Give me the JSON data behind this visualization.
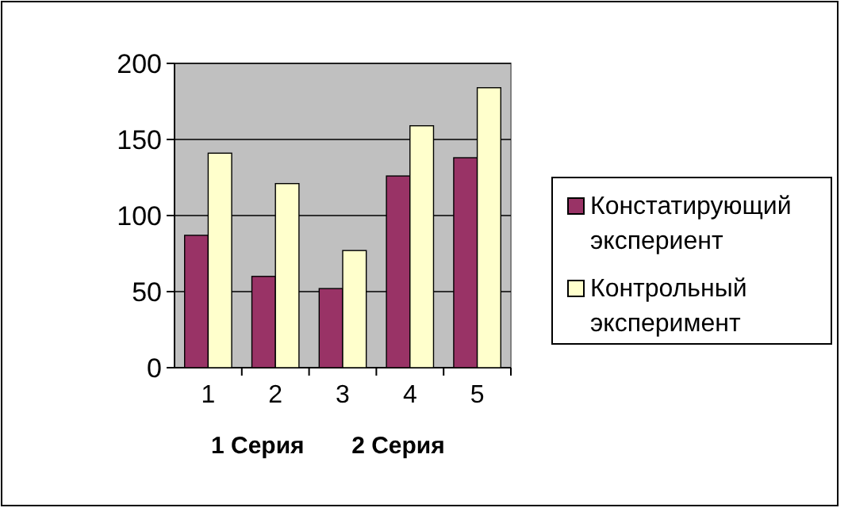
{
  "chart_data": {
    "type": "bar",
    "categories": [
      "1",
      "2",
      "3",
      "4",
      "5"
    ],
    "series": [
      {
        "name": "Констатирующий экспериент",
        "color": "#993366",
        "values": [
          87,
          60,
          52,
          126,
          138
        ]
      },
      {
        "name": "Контрольный эксперимент",
        "color": "#ffffcc",
        "values": [
          141,
          121,
          77,
          159,
          184
        ]
      }
    ],
    "ylim": [
      0,
      200
    ],
    "yticks": [
      0,
      50,
      100,
      150,
      200
    ],
    "grid": "y",
    "legend": "right",
    "annotations": [
      "1 Серия",
      "2 Серия"
    ]
  }
}
